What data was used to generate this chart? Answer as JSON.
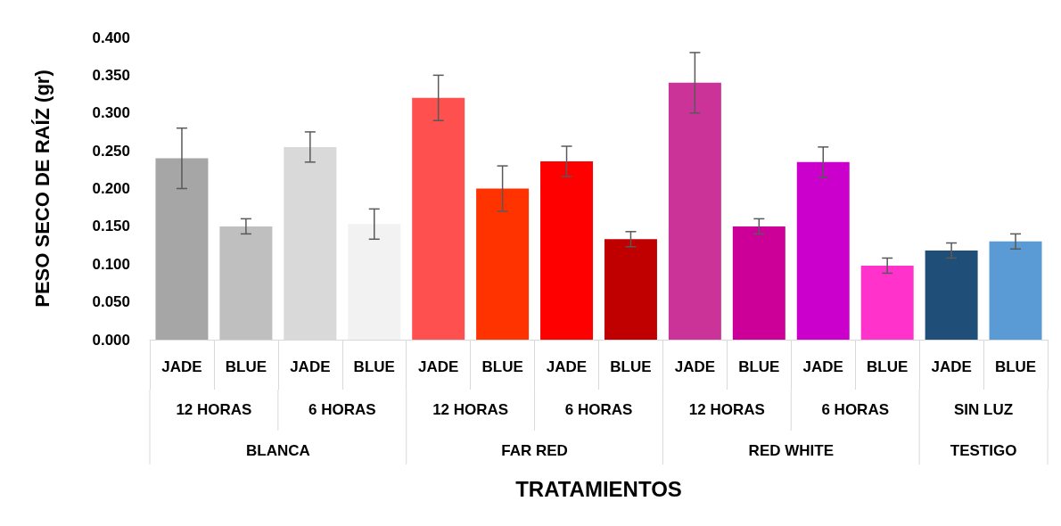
{
  "chart_data": {
    "type": "bar",
    "xlabel": "TRATAMIENTOS",
    "ylabel": "PESO SECO DE RAÍZ (gr)",
    "categories": [
      "JADE",
      "BLUE",
      "JADE",
      "BLUE",
      "JADE",
      "BLUE",
      "JADE",
      "BLUE",
      "JADE",
      "BLUE",
      "JADE",
      "BLUE",
      "JADE",
      "BLUE"
    ],
    "values": [
      0.24,
      0.15,
      0.255,
      0.153,
      0.32,
      0.2,
      0.236,
      0.133,
      0.34,
      0.15,
      0.235,
      0.098,
      0.118,
      0.13
    ],
    "errors": [
      0.04,
      0.01,
      0.02,
      0.02,
      0.03,
      0.03,
      0.02,
      0.01,
      0.04,
      0.01,
      0.02,
      0.01,
      0.01,
      0.01
    ],
    "colors": [
      "#a6a6a6",
      "#bfbfbf",
      "#d9d9d9",
      "#f2f2f2",
      "#ff5050",
      "#ff3300",
      "#ff0000",
      "#c00000",
      "#cc3399",
      "#cc0099",
      "#cc00cc",
      "#ff33cc",
      "#1f4e79",
      "#5b9bd5"
    ],
    "annotations": [
      "12 HORAS",
      "6 HORAS",
      "12 HORAS",
      "6 HORAS",
      "12 HORAS",
      "6 HORAS",
      "SIN LUZ",
      "BLANCA",
      "FAR RED",
      "RED WHITE",
      "TESTIGO"
    ],
    "ylim": [
      0,
      0.4
    ],
    "yticks": [
      {
        "value": 0,
        "label": "0.000"
      },
      {
        "value": 0.05,
        "label": "0.050"
      },
      {
        "value": 0.1,
        "label": "0.100"
      },
      {
        "value": 0.15,
        "label": "0.150"
      },
      {
        "value": 0.2,
        "label": "0.200"
      },
      {
        "value": 0.25,
        "label": "0.250"
      },
      {
        "value": 0.3,
        "label": "0.300"
      },
      {
        "value": 0.35,
        "label": "0.350"
      },
      {
        "value": 0.4,
        "label": "0.400"
      }
    ],
    "grid": false
  }
}
